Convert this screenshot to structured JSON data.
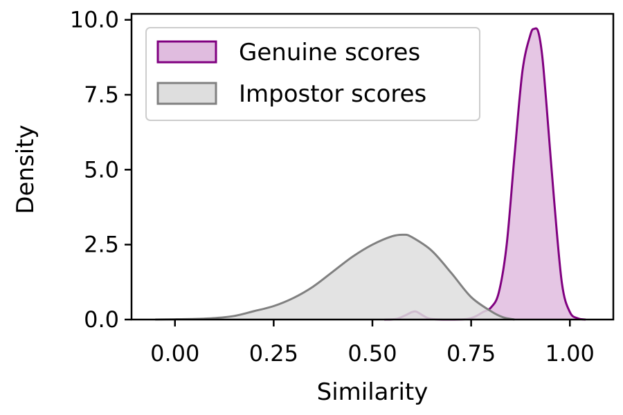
{
  "chart_data": {
    "type": "area",
    "xlabel": "Similarity",
    "ylabel": "Density",
    "xlim": [
      -0.11,
      1.11
    ],
    "ylim": [
      0,
      10.2
    ],
    "xticks": [
      0.0,
      0.25,
      0.5,
      0.75,
      1.0
    ],
    "xtick_labels": [
      "0.00",
      "0.25",
      "0.50",
      "0.75",
      "1.00"
    ],
    "yticks": [
      0.0,
      2.5,
      5.0,
      7.5,
      10.0
    ],
    "ytick_labels": [
      "0.0",
      "2.5",
      "5.0",
      "7.5",
      "10.0"
    ],
    "grid": false,
    "legend_position": "upper-left",
    "series": [
      {
        "name": "Genuine scores",
        "line_color": "#800080",
        "fill_color": "#e0bcdf",
        "x": [
          0.53,
          0.56,
          0.58,
          0.6,
          0.61,
          0.62,
          0.64,
          0.66,
          0.7,
          0.74,
          0.76,
          0.78,
          0.8,
          0.82,
          0.84,
          0.86,
          0.88,
          0.9,
          0.91,
          0.92,
          0.93,
          0.94,
          0.96,
          0.98,
          1.0,
          1.02,
          1.04
        ],
        "y": [
          0.0,
          0.02,
          0.12,
          0.25,
          0.27,
          0.2,
          0.05,
          0.01,
          0.0,
          0.02,
          0.1,
          0.25,
          0.4,
          0.9,
          2.5,
          5.5,
          8.3,
          9.5,
          9.7,
          9.6,
          8.8,
          7.3,
          4.0,
          1.2,
          0.25,
          0.04,
          0.0
        ]
      },
      {
        "name": "Impostor scores",
        "line_color": "#808080",
        "fill_color": "#dedede",
        "x": [
          -0.05,
          0.0,
          0.05,
          0.1,
          0.15,
          0.2,
          0.25,
          0.3,
          0.35,
          0.4,
          0.45,
          0.5,
          0.55,
          0.58,
          0.6,
          0.65,
          0.7,
          0.75,
          0.8,
          0.83,
          0.86
        ],
        "y": [
          0.0,
          0.01,
          0.02,
          0.05,
          0.12,
          0.28,
          0.45,
          0.72,
          1.1,
          1.6,
          2.1,
          2.5,
          2.78,
          2.83,
          2.75,
          2.3,
          1.55,
          0.75,
          0.28,
          0.08,
          0.0
        ]
      }
    ]
  }
}
